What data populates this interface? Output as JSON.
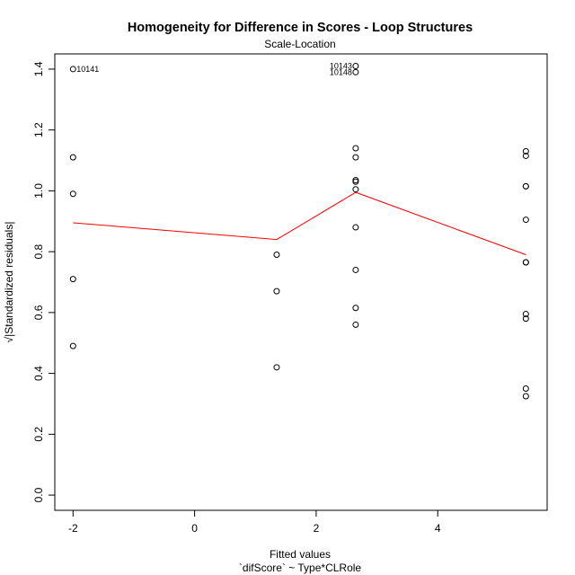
{
  "chart_data": {
    "type": "scatter",
    "title": "Homogeneity for Difference in Scores - Loop Structures",
    "subtitle": "Scale-Location",
    "xlabel": "Fitted values",
    "xlabel2": "`difScore` ~ Type*CLRole",
    "ylabel": "√|Standardized residuals|",
    "xlim": [
      -2.3,
      5.8
    ],
    "ylim": [
      -0.05,
      1.45
    ],
    "x_ticks": [
      -2,
      0,
      2,
      4
    ],
    "y_ticks": [
      0.0,
      0.2,
      0.4,
      0.6,
      0.8,
      1.0,
      1.2,
      1.4
    ],
    "grid": false,
    "points": [
      {
        "x": -2,
        "y": 1.4,
        "label": "10141"
      },
      {
        "x": -2,
        "y": 1.11
      },
      {
        "x": -2,
        "y": 0.99
      },
      {
        "x": -2,
        "y": 0.71
      },
      {
        "x": -2,
        "y": 0.49
      },
      {
        "x": 1.35,
        "y": 0.79
      },
      {
        "x": 1.35,
        "y": 0.67
      },
      {
        "x": 1.35,
        "y": 0.42
      },
      {
        "x": 2.65,
        "y": 1.41,
        "label": "10143"
      },
      {
        "x": 2.65,
        "y": 1.39,
        "label": "10148"
      },
      {
        "x": 2.65,
        "y": 1.14
      },
      {
        "x": 2.65,
        "y": 1.11
      },
      {
        "x": 2.65,
        "y": 1.035
      },
      {
        "x": 2.65,
        "y": 1.03
      },
      {
        "x": 2.65,
        "y": 1.005
      },
      {
        "x": 2.65,
        "y": 0.88
      },
      {
        "x": 2.65,
        "y": 0.74
      },
      {
        "x": 2.65,
        "y": 0.615
      },
      {
        "x": 2.65,
        "y": 0.56
      },
      {
        "x": 5.45,
        "y": 1.13
      },
      {
        "x": 5.45,
        "y": 1.115
      },
      {
        "x": 5.45,
        "y": 1.015
      },
      {
        "x": 5.45,
        "y": 1.015
      },
      {
        "x": 5.45,
        "y": 0.905
      },
      {
        "x": 5.45,
        "y": 0.765
      },
      {
        "x": 5.45,
        "y": 0.765
      },
      {
        "x": 5.45,
        "y": 0.595
      },
      {
        "x": 5.45,
        "y": 0.58
      },
      {
        "x": 5.45,
        "y": 0.35
      },
      {
        "x": 5.45,
        "y": 0.325
      }
    ],
    "smooth_line": {
      "color": "#ff0000",
      "x": [
        -2,
        1.35,
        2.65,
        5.45
      ],
      "y": [
        0.895,
        0.84,
        0.995,
        0.79
      ]
    }
  }
}
